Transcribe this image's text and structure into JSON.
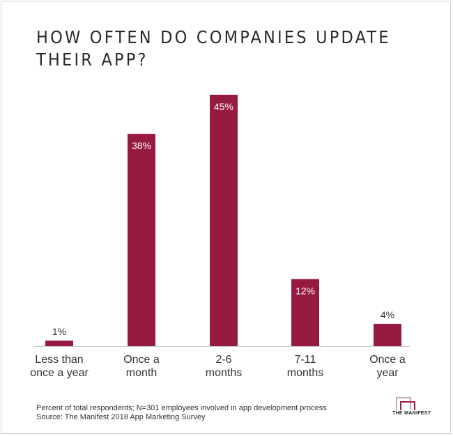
{
  "chart_data": {
    "type": "bar",
    "title": "HOW OFTEN DO COMPANIES UPDATE THEIR APP?",
    "categories": [
      "Less than once a year",
      "Once a month",
      "2-6 months",
      "7-11 months",
      "Once a year"
    ],
    "category_lines": [
      [
        "Less than",
        "once a year"
      ],
      [
        "Once a",
        "month"
      ],
      [
        "2-6",
        "months"
      ],
      [
        "7-11",
        "months"
      ],
      [
        "Once a",
        "year"
      ]
    ],
    "values": [
      1,
      38,
      45,
      12,
      4
    ],
    "value_labels": [
      "1%",
      "38%",
      "45%",
      "12%",
      "4%"
    ],
    "units": "%",
    "ylim": [
      0,
      45
    ],
    "xlabel": "",
    "ylabel": "",
    "grid": false,
    "bar_color": "#971a41"
  },
  "footnote": {
    "line1": "Percent of total respondents; N=301 employees involved in app development process",
    "line2": "Source: The Manifest 2018 App Marketing Survey"
  },
  "logo": {
    "text": "THE MANIFEST",
    "colors": {
      "outer": "#c9a3ad",
      "inner": "#9b1b42"
    }
  }
}
